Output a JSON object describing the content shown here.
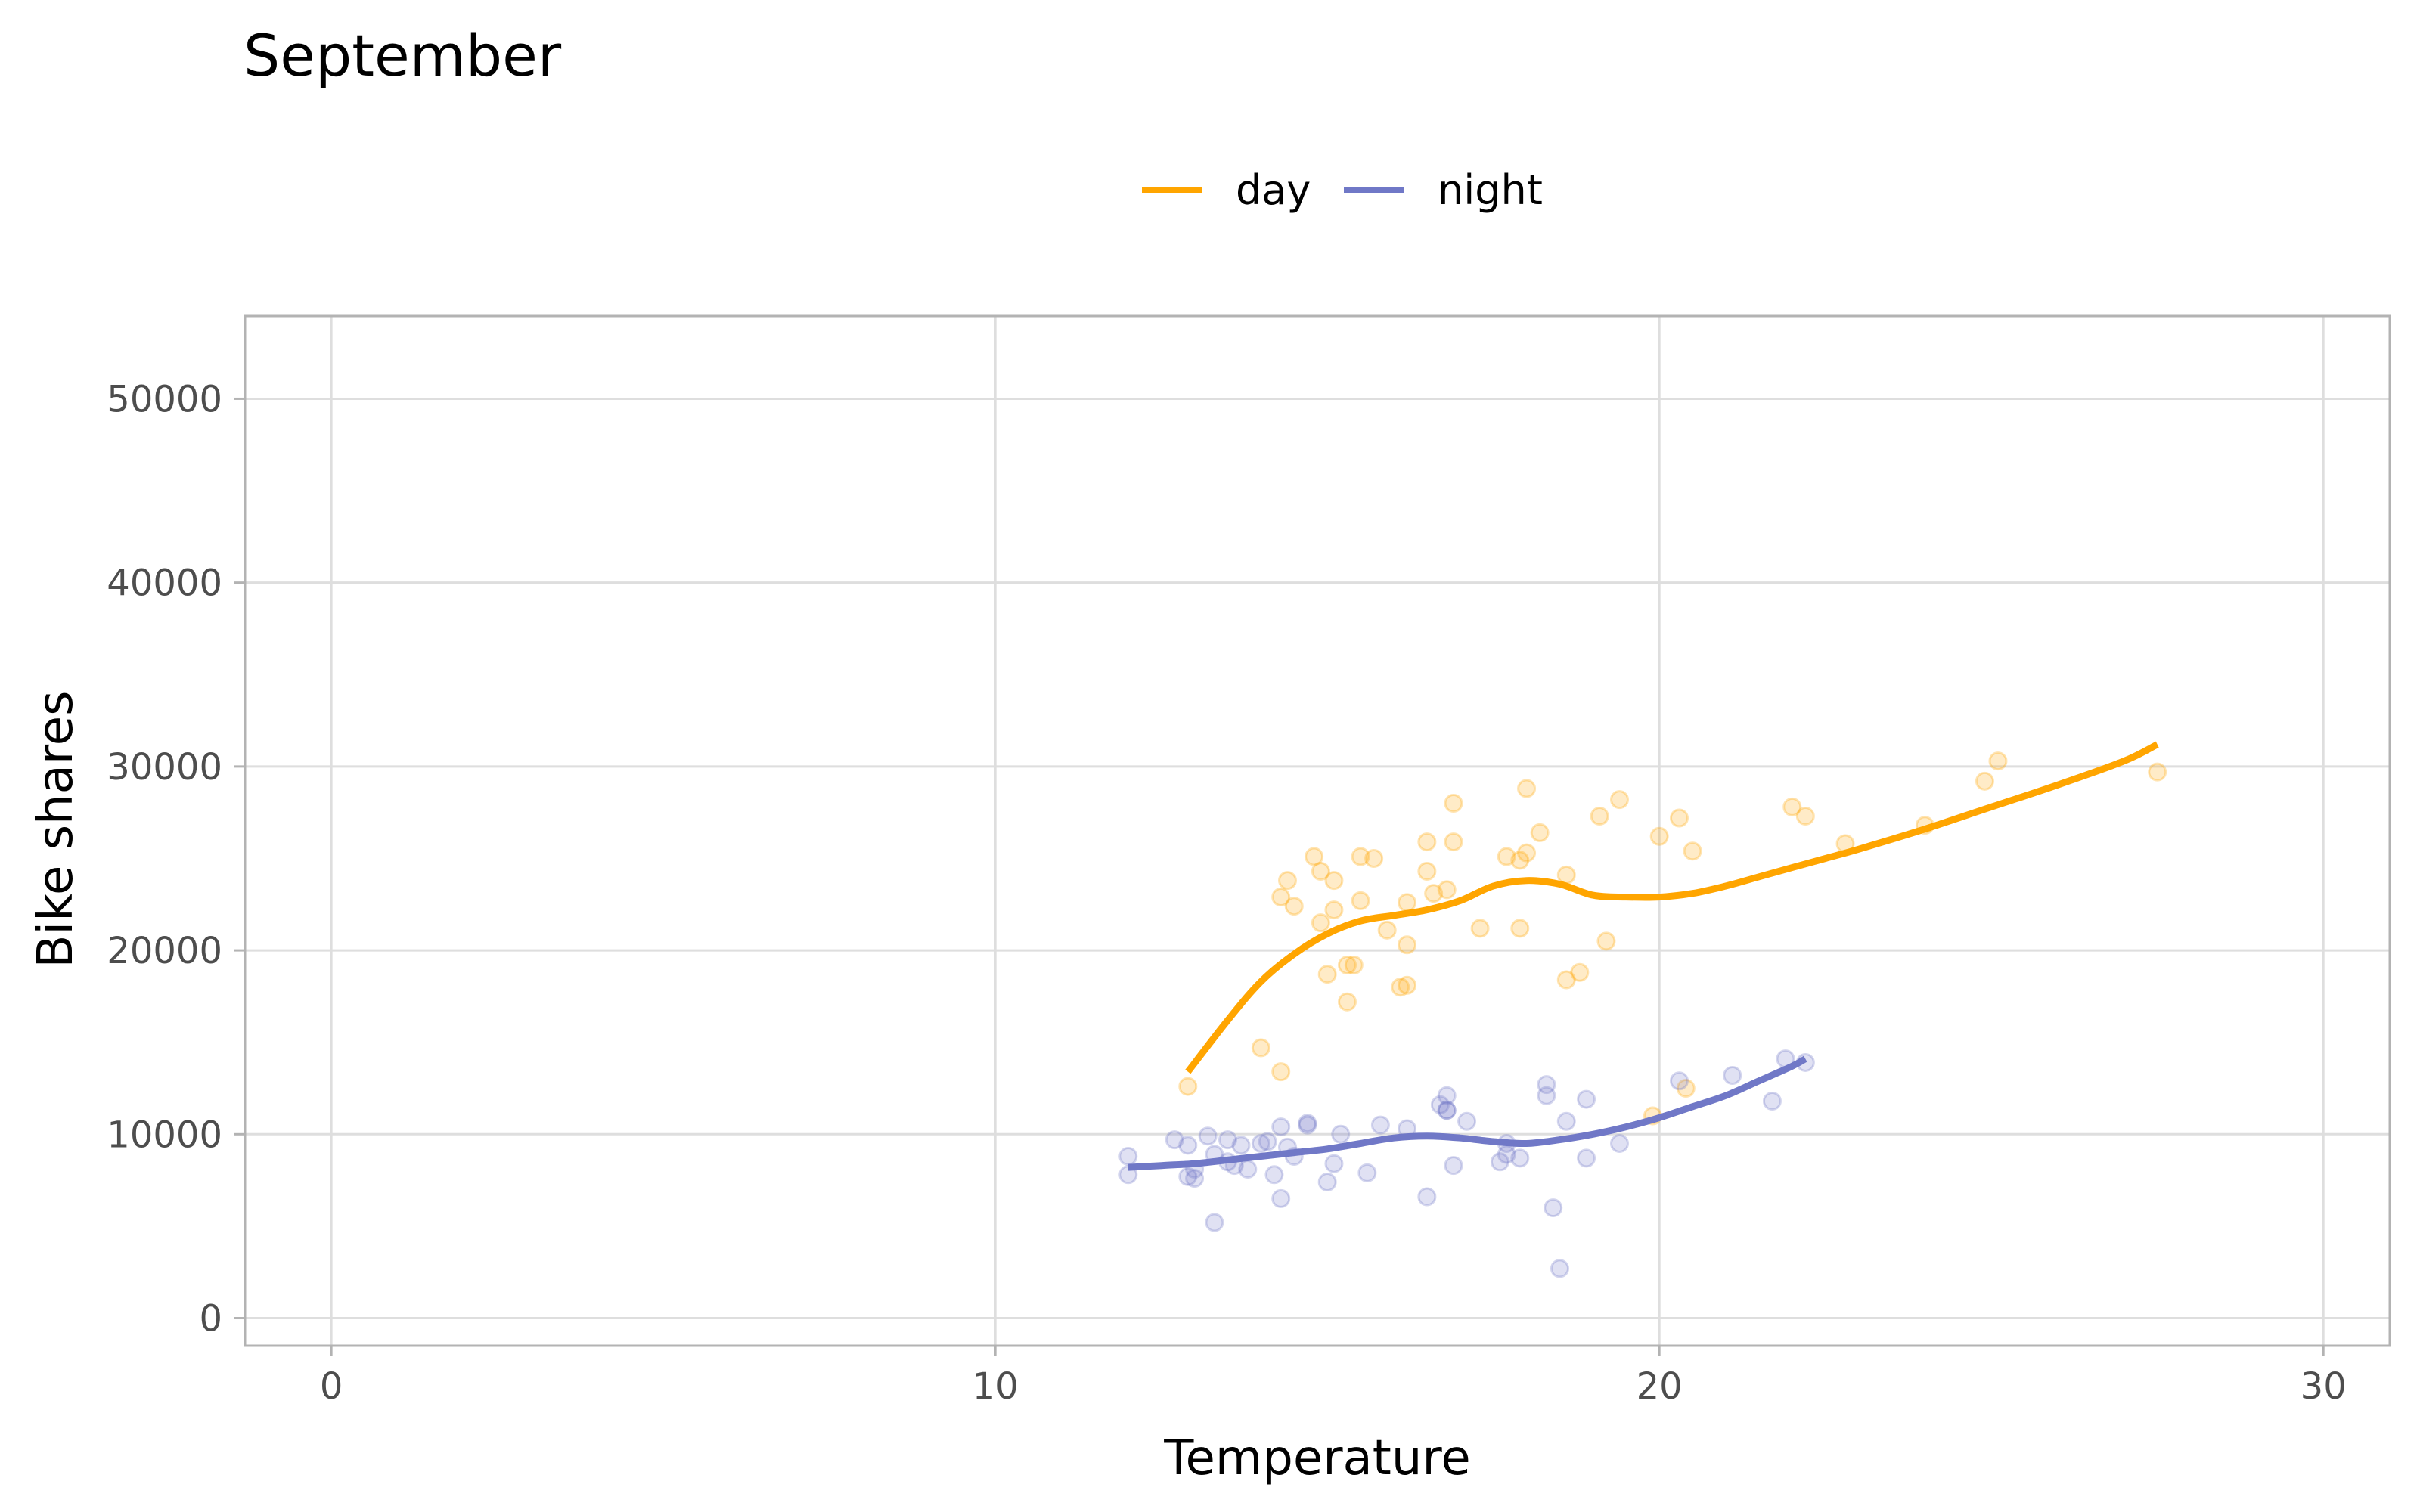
{
  "chart_data": {
    "type": "scatter",
    "title": "September",
    "xlabel": "Temperature",
    "ylabel": "Bike shares",
    "xlim": [
      -1.3,
      31.0
    ],
    "ylim": [
      -1500,
      54500
    ],
    "xticks": [
      0,
      10,
      20,
      30
    ],
    "yticks": [
      0,
      10000,
      20000,
      30000,
      40000,
      50000
    ],
    "xtick_labels": [
      "0",
      "10",
      "20",
      "30"
    ],
    "ytick_labels": [
      "0",
      "10000",
      "20000",
      "30000",
      "40000",
      "50000"
    ],
    "grid": true,
    "legend_position": "top",
    "series": [
      {
        "name": "day",
        "color": "#FFA500",
        "points": [
          [
            12.9,
            12600
          ],
          [
            14.0,
            14700
          ],
          [
            14.3,
            13400
          ],
          [
            14.3,
            22900
          ],
          [
            14.4,
            23800
          ],
          [
            14.5,
            22400
          ],
          [
            14.8,
            25100
          ],
          [
            14.9,
            24300
          ],
          [
            14.9,
            21500
          ],
          [
            15.0,
            18700
          ],
          [
            15.1,
            22200
          ],
          [
            15.1,
            23800
          ],
          [
            15.3,
            17200
          ],
          [
            15.3,
            19200
          ],
          [
            15.4,
            19200
          ],
          [
            15.5,
            22700
          ],
          [
            15.5,
            25100
          ],
          [
            15.7,
            25000
          ],
          [
            15.9,
            21100
          ],
          [
            16.1,
            18000
          ],
          [
            16.2,
            18100
          ],
          [
            16.2,
            20300
          ],
          [
            16.2,
            22600
          ],
          [
            16.5,
            25900
          ],
          [
            16.5,
            24300
          ],
          [
            16.6,
            23100
          ],
          [
            16.8,
            23300
          ],
          [
            16.9,
            28000
          ],
          [
            16.9,
            25900
          ],
          [
            17.3,
            21200
          ],
          [
            17.7,
            25100
          ],
          [
            17.9,
            21200
          ],
          [
            17.9,
            24900
          ],
          [
            18.0,
            28800
          ],
          [
            18.0,
            25300
          ],
          [
            18.2,
            26400
          ],
          [
            18.6,
            24100
          ],
          [
            18.6,
            18400
          ],
          [
            18.8,
            18800
          ],
          [
            19.1,
            27300
          ],
          [
            19.2,
            20500
          ],
          [
            19.4,
            28200
          ],
          [
            20.0,
            26200
          ],
          [
            20.3,
            27200
          ],
          [
            20.5,
            25400
          ],
          [
            22.0,
            27800
          ],
          [
            22.2,
            27300
          ],
          [
            22.8,
            25800
          ],
          [
            24.0,
            26800
          ],
          [
            24.9,
            29200
          ],
          [
            25.1,
            30300
          ],
          [
            27.5,
            29700
          ],
          [
            19.9,
            11000
          ],
          [
            20.4,
            12500
          ]
        ],
        "trend": [
          [
            12.9,
            13400
          ],
          [
            13.5,
            16200
          ],
          [
            14.0,
            18300
          ],
          [
            14.5,
            19800
          ],
          [
            15.0,
            20900
          ],
          [
            15.5,
            21600
          ],
          [
            16.0,
            21900
          ],
          [
            16.5,
            22200
          ],
          [
            17.0,
            22700
          ],
          [
            17.5,
            23500
          ],
          [
            18.0,
            23800
          ],
          [
            18.5,
            23600
          ],
          [
            19.0,
            23000
          ],
          [
            19.5,
            22900
          ],
          [
            20.0,
            22900
          ],
          [
            20.5,
            23100
          ],
          [
            21.0,
            23500
          ],
          [
            21.5,
            24000
          ],
          [
            22.0,
            24500
          ],
          [
            22.5,
            25000
          ],
          [
            23.0,
            25500
          ],
          [
            24.0,
            26600
          ],
          [
            25.0,
            27800
          ],
          [
            26.0,
            29000
          ],
          [
            27.0,
            30300
          ],
          [
            27.5,
            31200
          ]
        ]
      },
      {
        "name": "night",
        "color": "#7078C7",
        "points": [
          [
            12.0,
            7800
          ],
          [
            12.0,
            8800
          ],
          [
            12.7,
            9700
          ],
          [
            12.9,
            7700
          ],
          [
            12.9,
            9400
          ],
          [
            13.0,
            8100
          ],
          [
            13.0,
            7600
          ],
          [
            13.2,
            9900
          ],
          [
            13.3,
            8900
          ],
          [
            13.3,
            5200
          ],
          [
            13.5,
            9700
          ],
          [
            13.5,
            8500
          ],
          [
            13.6,
            8300
          ],
          [
            13.7,
            9400
          ],
          [
            13.8,
            8100
          ],
          [
            14.0,
            9500
          ],
          [
            14.1,
            9600
          ],
          [
            14.2,
            7800
          ],
          [
            14.3,
            10400
          ],
          [
            14.3,
            6500
          ],
          [
            14.4,
            9300
          ],
          [
            14.5,
            8800
          ],
          [
            14.7,
            10500
          ],
          [
            14.7,
            10600
          ],
          [
            15.0,
            7400
          ],
          [
            15.1,
            8400
          ],
          [
            15.2,
            10000
          ],
          [
            15.6,
            7900
          ],
          [
            15.8,
            10500
          ],
          [
            16.2,
            10300
          ],
          [
            16.5,
            6600
          ],
          [
            16.7,
            11600
          ],
          [
            16.8,
            11300
          ],
          [
            16.8,
            12100
          ],
          [
            16.8,
            11300
          ],
          [
            16.9,
            8300
          ],
          [
            17.1,
            10700
          ],
          [
            17.6,
            8500
          ],
          [
            17.7,
            8900
          ],
          [
            17.7,
            9500
          ],
          [
            17.9,
            8700
          ],
          [
            18.3,
            12700
          ],
          [
            18.3,
            12100
          ],
          [
            18.4,
            6000
          ],
          [
            18.5,
            2700
          ],
          [
            18.6,
            10700
          ],
          [
            18.9,
            11900
          ],
          [
            18.9,
            8700
          ],
          [
            19.4,
            9500
          ],
          [
            20.3,
            12900
          ],
          [
            21.1,
            13200
          ],
          [
            21.7,
            11800
          ],
          [
            21.9,
            14100
          ],
          [
            22.2,
            13900
          ]
        ],
        "trend": [
          [
            12.0,
            8200
          ],
          [
            12.5,
            8300
          ],
          [
            13.0,
            8400
          ],
          [
            13.5,
            8600
          ],
          [
            14.0,
            8800
          ],
          [
            14.5,
            9000
          ],
          [
            15.0,
            9200
          ],
          [
            15.5,
            9500
          ],
          [
            16.0,
            9800
          ],
          [
            16.5,
            9900
          ],
          [
            17.0,
            9800
          ],
          [
            17.5,
            9600
          ],
          [
            18.0,
            9500
          ],
          [
            18.5,
            9700
          ],
          [
            19.0,
            10000
          ],
          [
            19.5,
            10400
          ],
          [
            20.0,
            10900
          ],
          [
            20.5,
            11500
          ],
          [
            21.0,
            12100
          ],
          [
            21.5,
            12900
          ],
          [
            22.0,
            13700
          ],
          [
            22.2,
            14100
          ]
        ]
      }
    ]
  }
}
